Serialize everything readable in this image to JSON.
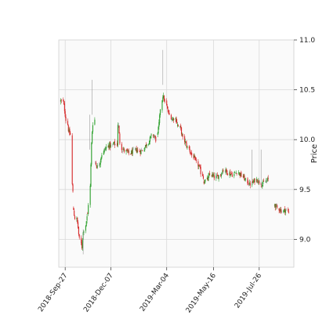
{
  "chart_data": {
    "type": "candlestick",
    "title": "",
    "xlabel": "",
    "ylabel": "Price",
    "ylim": [
      8.72,
      11.0
    ],
    "y_axis_side": "right",
    "grid": true,
    "x_tick_labels": [
      "2018-Sep-27",
      "2018-Dec-07",
      "2019-Mar-04",
      "2019-May-16",
      "2019-Jul-26"
    ],
    "y_tick_labels": [
      "9.0",
      "9.5",
      "10.0",
      "10.5",
      "11.0"
    ],
    "y_ticks": [
      9.0,
      9.5,
      10.0,
      10.5,
      11.0
    ],
    "colors": {
      "up": "#2ca02c",
      "down": "#d62728",
      "neutral": "#9a9a9a",
      "grid": "#d9d9d9",
      "plot_bg": "#fafafa"
    },
    "segments": [
      {
        "start": "2018-09-20",
        "end": "2018-10-04",
        "path": [
          10.39,
          10.38,
          10.3,
          10.2,
          10.1,
          10.05
        ]
      },
      {
        "start": "2018-10-05",
        "end": "2018-10-09",
        "path": [
          10.05,
          9.55,
          9.47
        ]
      },
      {
        "start": "2018-10-10",
        "end": "2018-10-31",
        "path": [
          9.3,
          9.22,
          9.2,
          9.15,
          9.05,
          8.97,
          8.92,
          9.05,
          9.1,
          9.17,
          9.22
        ]
      },
      {
        "start": "2018-11-01",
        "end": "2018-11-12",
        "path": [
          9.25,
          9.4,
          9.7,
          10.0,
          10.15,
          10.2
        ]
      },
      {
        "start": "2018-11-13",
        "end": "2018-12-14",
        "path": [
          9.78,
          9.72,
          9.78,
          9.85,
          9.9,
          9.92,
          9.95,
          9.93,
          9.96,
          9.95
        ]
      },
      {
        "start": "2018-12-15",
        "end": "2018-12-25",
        "path": [
          9.95,
          10.2,
          10.1,
          10.0,
          9.92,
          9.9
        ]
      },
      {
        "start": "2018-12-26",
        "end": "2019-02-15",
        "path": [
          9.9,
          9.88,
          9.86,
          9.88,
          9.9,
          9.88,
          9.9,
          9.95,
          10.0,
          10.05,
          10.0
        ]
      },
      {
        "start": "2019-02-18",
        "end": "2019-03-20",
        "path": [
          10.05,
          10.2,
          10.45,
          10.4,
          10.3,
          10.25,
          10.2,
          10.22,
          10.18
        ]
      },
      {
        "start": "2019-03-21",
        "end": "2019-04-30",
        "path": [
          10.15,
          10.1,
          10.0,
          9.95,
          9.9,
          9.85,
          9.8,
          9.75,
          9.7,
          9.62
        ]
      },
      {
        "start": "2019-05-01",
        "end": "2019-06-20",
        "path": [
          9.58,
          9.6,
          9.65,
          9.63,
          9.62,
          9.65,
          9.7,
          9.68,
          9.66,
          9.65,
          9.67
        ]
      },
      {
        "start": "2019-06-21",
        "end": "2019-08-09",
        "path": [
          9.68,
          9.65,
          9.62,
          9.58,
          9.55,
          9.57,
          9.6,
          9.58,
          9.55,
          9.58,
          9.6
        ]
      },
      {
        "start": "2019-08-19",
        "end": "2019-09-10",
        "path": [
          9.35,
          9.32,
          9.3,
          9.28,
          9.3,
          9.27
        ]
      }
    ],
    "spikes": [
      {
        "date": "2018-11-08",
        "high": 10.6
      },
      {
        "date": "2018-11-04",
        "high": 10.25
      },
      {
        "date": "2018-10-25",
        "low": 8.85
      },
      {
        "date": "2019-02-26",
        "high": 10.9
      },
      {
        "date": "2019-07-15",
        "high": 9.9
      },
      {
        "date": "2019-07-29",
        "high": 9.9
      }
    ]
  }
}
